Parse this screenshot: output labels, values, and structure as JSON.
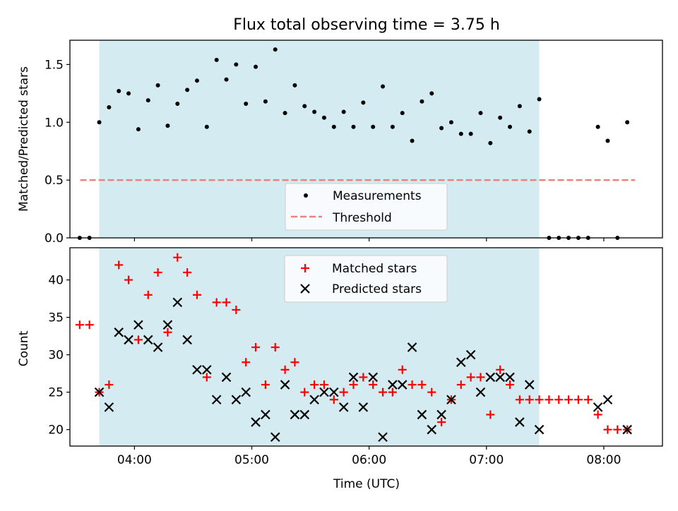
{
  "figure": {
    "title": "Flux total observing time = 3.75 h",
    "xlabel": "Time (UTC)",
    "colors": {
      "background": "#ffffff",
      "shade": "#add8e6",
      "measurement": "#000000",
      "threshold": "#f08080",
      "matched": "#ff0000",
      "predicted": "#000000"
    }
  },
  "chart_data": [
    {
      "type": "scatter",
      "panel": "top",
      "ylabel": "Matched/Predicted stars",
      "xlim": [
        "03:27",
        "08:30"
      ],
      "ylim": [
        0.0,
        1.71
      ],
      "xticks": [
        "04:00",
        "05:00",
        "06:00",
        "07:00",
        "08:00"
      ],
      "yticks": [
        "0.0",
        "0.5",
        "1.0",
        "1.5"
      ],
      "shaded_span": [
        "03:42",
        "07:27"
      ],
      "threshold": 0.5,
      "threshold_x": [
        "03:42",
        "08:16"
      ],
      "legend_position": "lower center",
      "series": [
        {
          "name": "Measurements",
          "marker": "dot",
          "x": [
            "03:32",
            "03:37",
            "03:42",
            "03:47",
            "03:52",
            "03:57",
            "04:02",
            "04:07",
            "04:12",
            "04:17",
            "04:22",
            "04:27",
            "04:32",
            "04:37",
            "04:42",
            "04:47",
            "04:52",
            "04:57",
            "05:02",
            "05:07",
            "05:12",
            "05:17",
            "05:22",
            "05:27",
            "05:32",
            "05:37",
            "05:42",
            "05:47",
            "05:52",
            "05:57",
            "06:02",
            "06:07",
            "06:12",
            "06:17",
            "06:22",
            "06:27",
            "06:32",
            "06:37",
            "06:42",
            "06:47",
            "06:52",
            "06:57",
            "07:02",
            "07:07",
            "07:12",
            "07:17",
            "07:22",
            "07:27",
            "07:32",
            "07:37",
            "07:42",
            "07:47",
            "07:52",
            "07:57",
            "08:02",
            "08:07",
            "08:12"
          ],
          "y": [
            0.0,
            0.0,
            1.0,
            1.13,
            1.27,
            1.25,
            0.94,
            1.19,
            1.32,
            0.97,
            1.16,
            1.28,
            1.36,
            0.96,
            1.54,
            1.37,
            1.5,
            1.16,
            1.48,
            1.18,
            1.63,
            1.08,
            1.32,
            1.14,
            1.09,
            1.04,
            0.96,
            1.09,
            0.96,
            1.17,
            0.96,
            1.31,
            0.96,
            1.08,
            0.84,
            1.18,
            1.25,
            0.95,
            1.0,
            0.9,
            0.9,
            1.08,
            0.82,
            1.04,
            0.96,
            1.14,
            0.92,
            1.2,
            0.0,
            0.0,
            0.0,
            0.0,
            0.0,
            0.96,
            0.84,
            0.0,
            1.0
          ]
        },
        {
          "name": "Threshold",
          "marker": "dashed-line"
        }
      ]
    },
    {
      "type": "scatter",
      "panel": "bottom",
      "ylabel": "Count",
      "xlim": [
        "03:27",
        "08:30"
      ],
      "ylim": [
        17.8,
        44.3
      ],
      "xticks": [
        "04:00",
        "05:00",
        "06:00",
        "07:00",
        "08:00"
      ],
      "yticks": [
        "20",
        "25",
        "30",
        "35",
        "40"
      ],
      "shaded_span": [
        "03:42",
        "07:27"
      ],
      "legend_position": "upper center",
      "series": [
        {
          "name": "Matched stars",
          "marker": "plus",
          "x": [
            "03:32",
            "03:37",
            "03:42",
            "03:47",
            "03:52",
            "03:57",
            "04:02",
            "04:07",
            "04:12",
            "04:17",
            "04:22",
            "04:27",
            "04:32",
            "04:37",
            "04:42",
            "04:47",
            "04:52",
            "04:57",
            "05:02",
            "05:07",
            "05:12",
            "05:17",
            "05:22",
            "05:27",
            "05:32",
            "05:37",
            "05:42",
            "05:47",
            "05:52",
            "05:57",
            "06:02",
            "06:07",
            "06:12",
            "06:17",
            "06:22",
            "06:27",
            "06:32",
            "06:37",
            "06:42",
            "06:47",
            "06:52",
            "06:57",
            "07:02",
            "07:07",
            "07:12",
            "07:17",
            "07:22",
            "07:27",
            "07:32",
            "07:37",
            "07:42",
            "07:47",
            "07:52",
            "07:57",
            "08:02",
            "08:07",
            "08:12"
          ],
          "y": [
            34,
            34,
            25,
            26,
            42,
            40,
            32,
            38,
            41,
            33,
            43,
            41,
            38,
            27,
            37,
            37,
            36,
            29,
            31,
            26,
            31,
            28,
            29,
            25,
            26,
            26,
            24,
            25,
            26,
            27,
            26,
            25,
            25,
            28,
            26,
            26,
            25,
            21,
            24,
            26,
            27,
            27,
            22,
            28,
            26,
            24,
            24,
            24,
            24,
            24,
            24,
            24,
            24,
            22,
            20,
            20,
            20
          ]
        },
        {
          "name": "Predicted stars",
          "marker": "x",
          "x": [
            "03:42",
            "03:47",
            "03:52",
            "03:57",
            "04:02",
            "04:07",
            "04:12",
            "04:17",
            "04:22",
            "04:27",
            "04:32",
            "04:37",
            "04:42",
            "04:47",
            "04:52",
            "04:57",
            "05:02",
            "05:07",
            "05:12",
            "05:17",
            "05:22",
            "05:27",
            "05:32",
            "05:37",
            "05:42",
            "05:47",
            "05:52",
            "05:57",
            "06:02",
            "06:07",
            "06:12",
            "06:17",
            "06:22",
            "06:27",
            "06:32",
            "06:37",
            "06:42",
            "06:47",
            "06:52",
            "06:57",
            "07:02",
            "07:07",
            "07:12",
            "07:17",
            "07:22",
            "07:27",
            "07:57",
            "08:02",
            "08:12"
          ],
          "y": [
            25,
            23,
            33,
            32,
            34,
            32,
            31,
            34,
            37,
            32,
            28,
            28,
            24,
            27,
            24,
            25,
            21,
            22,
            19,
            26,
            22,
            22,
            24,
            25,
            25,
            23,
            27,
            23,
            27,
            19,
            26,
            26,
            31,
            22,
            20,
            22,
            24,
            29,
            30,
            25,
            27,
            27,
            27,
            21,
            26,
            20,
            23,
            24,
            20
          ]
        }
      ]
    }
  ]
}
